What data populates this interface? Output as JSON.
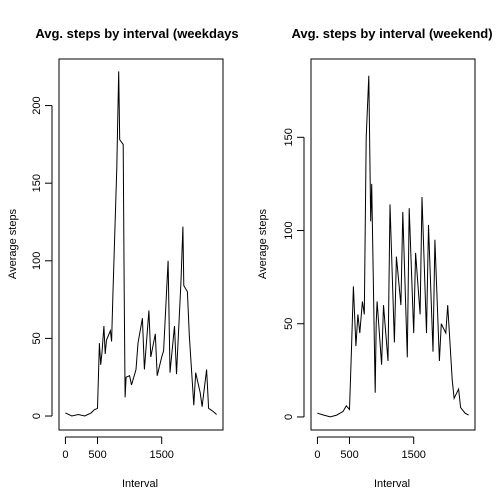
{
  "chart_data": [
    {
      "type": "line",
      "title": "Avg. steps by interval (weekdays",
      "xlabel": "Interval",
      "ylabel": "Average steps",
      "xlim": [
        -100,
        2455
      ],
      "ylim": [
        -9,
        230
      ],
      "x_ticks": [
        0,
        500,
        1500
      ],
      "y_ticks": [
        0,
        50,
        100,
        150,
        200
      ],
      "grid": false,
      "series": [
        {
          "x": [
            0,
            100,
            200,
            300,
            400,
            450,
            500,
            530,
            550,
            570,
            600,
            620,
            640,
            700,
            720,
            740,
            800,
            815,
            830,
            845,
            900,
            915,
            930,
            945,
            1000,
            1030,
            1100,
            1130,
            1200,
            1230,
            1300,
            1330,
            1400,
            1430,
            1500,
            1530,
            1600,
            1630,
            1700,
            1730,
            1800,
            1830,
            1845,
            1900,
            1930,
            2000,
            2030,
            2100,
            2130,
            2200,
            2230,
            2300,
            2355
          ],
          "y": [
            2,
            0,
            1,
            0,
            2,
            4,
            5,
            47,
            33,
            41,
            58,
            40,
            49,
            55,
            48,
            78,
            160,
            190,
            222,
            178,
            175,
            80,
            12,
            25,
            26,
            20,
            30,
            47,
            63,
            30,
            68,
            38,
            53,
            26,
            38,
            42,
            100,
            28,
            58,
            27,
            87,
            122,
            84,
            80,
            52,
            7,
            28,
            15,
            6,
            30,
            5,
            3,
            1
          ]
        }
      ]
    },
    {
      "type": "line",
      "title": "Avg. steps by interval (weekend)",
      "xlabel": "Interval",
      "ylabel": "Average steps",
      "xlim": [
        -100,
        2455
      ],
      "ylim": [
        -7,
        192
      ],
      "x_ticks": [
        0,
        500,
        1500
      ],
      "y_ticks": [
        0,
        50,
        100,
        150
      ],
      "grid": false,
      "series": [
        {
          "x": [
            0,
            100,
            200,
            300,
            400,
            450,
            500,
            530,
            560,
            600,
            630,
            660,
            700,
            730,
            760,
            800,
            830,
            845,
            900,
            915,
            930,
            1000,
            1030,
            1100,
            1130,
            1200,
            1230,
            1300,
            1330,
            1400,
            1430,
            1500,
            1530,
            1600,
            1630,
            1700,
            1730,
            1800,
            1830,
            1900,
            1930,
            2000,
            2030,
            2100,
            2130,
            2200,
            2230,
            2300,
            2355
          ],
          "y": [
            2,
            1,
            0,
            1,
            3,
            6,
            4,
            35,
            70,
            38,
            55,
            45,
            62,
            55,
            150,
            183,
            105,
            125,
            13,
            50,
            62,
            28,
            60,
            30,
            114,
            40,
            86,
            60,
            110,
            32,
            112,
            45,
            88,
            55,
            118,
            45,
            103,
            35,
            95,
            30,
            50,
            45,
            60,
            20,
            10,
            15,
            5,
            2,
            1
          ]
        }
      ]
    }
  ]
}
